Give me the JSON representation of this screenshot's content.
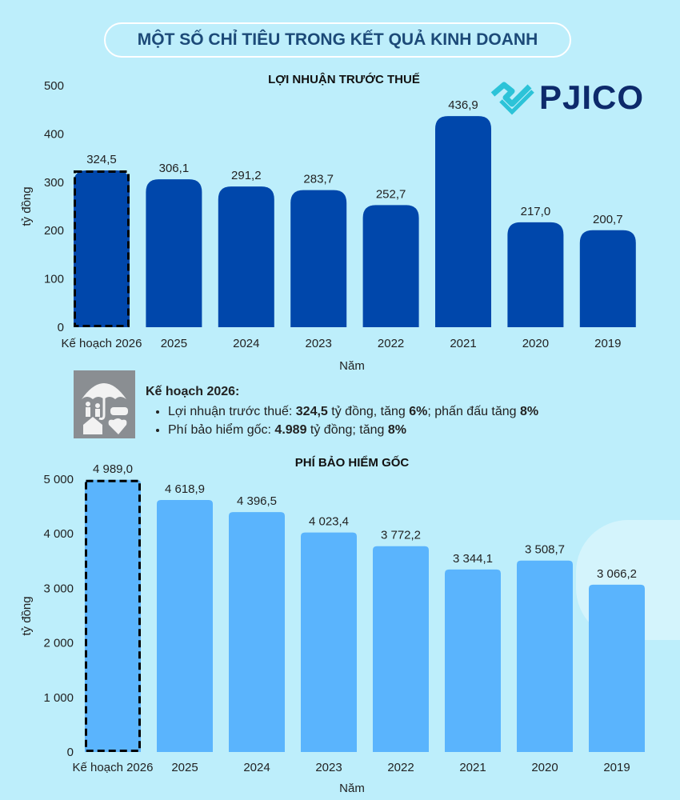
{
  "header": {
    "title": "MỘT SỐ CHỈ TIÊU TRONG KẾT QUẢ KINH DOANH"
  },
  "logo": {
    "text": "PJICO",
    "colors": {
      "mark": "#2cc3d8",
      "text": "#0d2a6b"
    }
  },
  "note": {
    "icon": "insurance-umbrella-family-icon",
    "title": "Kế hoạch 2026:",
    "items": [
      {
        "parts": [
          {
            "t": "Lợi nhuận trước thuế: ",
            "b": false
          },
          {
            "t": "324,5",
            "b": true
          },
          {
            "t": " tỷ đồng, tăng ",
            "b": false
          },
          {
            "t": "6%",
            "b": true
          },
          {
            "t": "; phấn đấu tăng ",
            "b": false
          },
          {
            "t": "8%",
            "b": true
          }
        ]
      },
      {
        "parts": [
          {
            "t": "Phí bảo hiểm gốc: ",
            "b": false
          },
          {
            "t": "4.989",
            "b": true
          },
          {
            "t": " tỷ đồng; tăng ",
            "b": false
          },
          {
            "t": "8%",
            "b": true
          }
        ]
      }
    ]
  },
  "chart_data": [
    {
      "type": "bar",
      "title": "LỢI NHUẬN TRƯỚC THUẾ",
      "xlabel": "Năm",
      "ylabel": "tỷ đồng",
      "categories": [
        "Kế hoạch 2026",
        "2025",
        "2024",
        "2023",
        "2022",
        "2021",
        "2020",
        "2019"
      ],
      "values": [
        324.5,
        306.1,
        291.2,
        283.7,
        252.7,
        436.9,
        217.0,
        200.7
      ],
      "data_labels": [
        "324,5",
        "306,1",
        "291,2",
        "283,7",
        "252,7",
        "436,9",
        "217,0",
        "200,7"
      ],
      "ylim": [
        0,
        500
      ],
      "yticks": [
        0,
        100,
        200,
        300,
        400,
        500
      ],
      "ytick_labels": [
        "0",
        "100",
        "200",
        "300",
        "400",
        "500"
      ],
      "grid": false,
      "highlight": "Kế hoạch 2026",
      "color": "#0047ab"
    },
    {
      "type": "bar",
      "title": "PHÍ BẢO HIỂM GỐC",
      "xlabel": "Năm",
      "ylabel": "tỷ đồng",
      "categories": [
        "Kế hoạch 2026",
        "2025",
        "2024",
        "2023",
        "2022",
        "2021",
        "2020",
        "2019"
      ],
      "values": [
        4989.0,
        4618.9,
        4396.5,
        4023.4,
        3772.2,
        3344.1,
        3508.7,
        3066.2
      ],
      "data_labels": [
        "4 989,0",
        "4 618,9",
        "4 396,5",
        "4 023,4",
        "3 772,2",
        "3 344,1",
        "3 508,7",
        "3 066,2"
      ],
      "ylim": [
        0,
        5000
      ],
      "yticks": [
        0,
        1000,
        2000,
        3000,
        4000,
        5000
      ],
      "ytick_labels": [
        "0",
        "1 000",
        "2 000",
        "3 000",
        "4 000",
        "5 000"
      ],
      "grid": false,
      "highlight": "Kế hoạch 2026",
      "color": "#5ab4fd"
    }
  ]
}
